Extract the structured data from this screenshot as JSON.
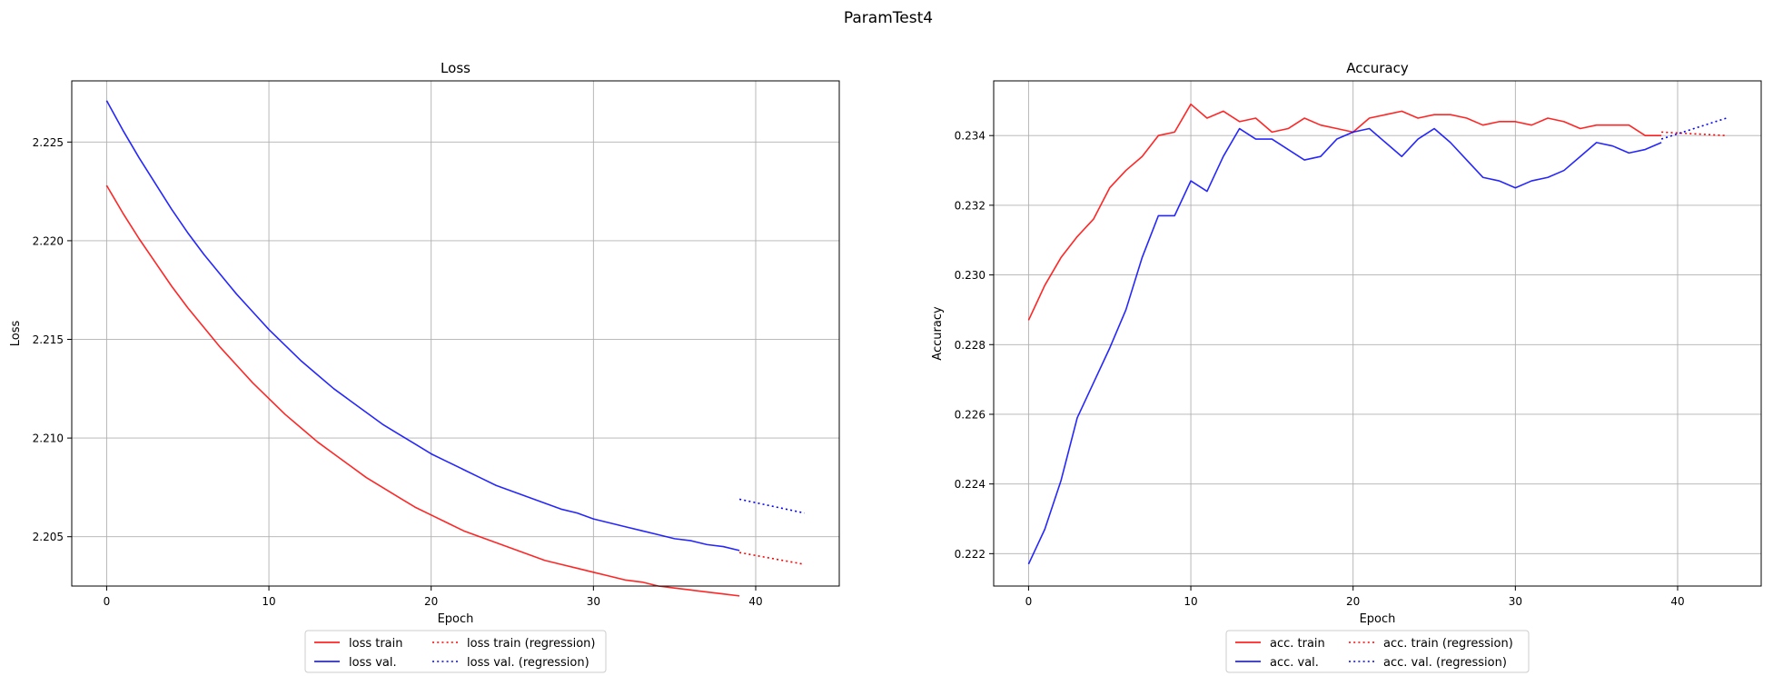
{
  "suptitle": "ParamTest4",
  "colors": {
    "train": "#ff0000",
    "val": "#0000ff",
    "grid": "#b0b0b0"
  },
  "chart_data": [
    {
      "type": "line",
      "title": "Loss",
      "xlabel": "Epoch",
      "ylabel": "Loss",
      "xlim": [
        -2.15,
        45.15
      ],
      "ylim": [
        2.2025,
        2.2281
      ],
      "xticks": [
        0,
        10,
        20,
        30,
        40
      ],
      "xtick_labels": [
        "0",
        "10",
        "20",
        "30",
        "40"
      ],
      "yticks": [
        2.205,
        2.21,
        2.215,
        2.22,
        2.225
      ],
      "ytick_labels": [
        "2.205",
        "2.210",
        "2.215",
        "2.220",
        "2.225"
      ],
      "grid": true,
      "legend_position": "below",
      "series": [
        {
          "name": "loss train",
          "color": "#ff0000",
          "style": "solid",
          "x": [
            0,
            1,
            2,
            3,
            4,
            5,
            6,
            7,
            8,
            9,
            10,
            11,
            12,
            13,
            14,
            15,
            16,
            17,
            18,
            19,
            20,
            21,
            22,
            23,
            24,
            25,
            26,
            27,
            28,
            29,
            30,
            31,
            32,
            33,
            34,
            35,
            36,
            37,
            38,
            39
          ],
          "y": [
            2.2228,
            2.2214,
            2.2201,
            2.2189,
            2.2177,
            2.2166,
            2.2156,
            2.2146,
            2.2137,
            2.2128,
            2.212,
            2.2112,
            2.2105,
            2.2098,
            2.2092,
            2.2086,
            2.208,
            2.2075,
            2.207,
            2.2065,
            2.2061,
            2.2057,
            2.2053,
            2.205,
            2.2047,
            2.2044,
            2.2041,
            2.2038,
            2.2036,
            2.2034,
            2.2032,
            2.203,
            2.2028,
            2.2027,
            2.2025,
            2.2024,
            2.2023,
            2.2022,
            2.2021,
            2.202
          ]
        },
        {
          "name": "loss val.",
          "color": "#0000ff",
          "style": "solid",
          "x": [
            0,
            1,
            2,
            3,
            4,
            5,
            6,
            7,
            8,
            9,
            10,
            11,
            12,
            13,
            14,
            15,
            16,
            17,
            18,
            19,
            20,
            21,
            22,
            23,
            24,
            25,
            26,
            27,
            28,
            29,
            30,
            31,
            32,
            33,
            34,
            35,
            36,
            37,
            38,
            39
          ],
          "y": [
            2.2271,
            2.2256,
            2.2242,
            2.2229,
            2.2216,
            2.2204,
            2.2193,
            2.2183,
            2.2173,
            2.2164,
            2.2155,
            2.2147,
            2.2139,
            2.2132,
            2.2125,
            2.2119,
            2.2113,
            2.2107,
            2.2102,
            2.2097,
            2.2092,
            2.2088,
            2.2084,
            2.208,
            2.2076,
            2.2073,
            2.207,
            2.2067,
            2.2064,
            2.2062,
            2.2059,
            2.2057,
            2.2055,
            2.2053,
            2.2051,
            2.2049,
            2.2048,
            2.2046,
            2.2045,
            2.2043
          ]
        },
        {
          "name": "loss train (regression)",
          "color": "#ff0000",
          "style": "dotted",
          "x": [
            39,
            43
          ],
          "y": [
            2.2042,
            2.2036
          ]
        },
        {
          "name": "loss val. (regression)",
          "color": "#0000ff",
          "style": "dotted",
          "x": [
            39,
            43
          ],
          "y": [
            2.2069,
            2.2062
          ]
        }
      ],
      "legend": [
        {
          "label": "loss train",
          "color": "#ff0000",
          "style": "solid"
        },
        {
          "label": "loss val.",
          "color": "#0000ff",
          "style": "solid"
        },
        {
          "label": "loss train (regression)",
          "color": "#ff0000",
          "style": "dotted"
        },
        {
          "label": "loss val. (regression)",
          "color": "#0000ff",
          "style": "dotted"
        }
      ]
    },
    {
      "type": "line",
      "title": "Accuracy",
      "xlabel": "Epoch",
      "ylabel": "Accuracy",
      "xlim": [
        -2.15,
        45.15
      ],
      "ylim": [
        0.22107,
        0.23557
      ],
      "xticks": [
        0,
        10,
        20,
        30,
        40
      ],
      "xtick_labels": [
        "0",
        "10",
        "20",
        "30",
        "40"
      ],
      "yticks": [
        0.222,
        0.224,
        0.226,
        0.228,
        0.23,
        0.232,
        0.234
      ],
      "ytick_labels": [
        "0.222",
        "0.224",
        "0.226",
        "0.228",
        "0.230",
        "0.232",
        "0.234"
      ],
      "grid": true,
      "legend_position": "below",
      "series": [
        {
          "name": "acc. train",
          "color": "#ff0000",
          "style": "solid",
          "x": [
            0,
            1,
            2,
            3,
            4,
            5,
            6,
            7,
            8,
            9,
            10,
            11,
            12,
            13,
            14,
            15,
            16,
            17,
            18,
            19,
            20,
            21,
            22,
            23,
            24,
            25,
            26,
            27,
            28,
            29,
            30,
            31,
            32,
            33,
            34,
            35,
            36,
            37,
            38,
            39
          ],
          "y": [
            0.2287,
            0.2297,
            0.2305,
            0.2311,
            0.2316,
            0.2325,
            0.233,
            0.2334,
            0.234,
            0.2341,
            0.2349,
            0.2345,
            0.2347,
            0.2344,
            0.2345,
            0.2341,
            0.2342,
            0.2345,
            0.2343,
            0.2342,
            0.2341,
            0.2345,
            0.2346,
            0.2347,
            0.2345,
            0.2346,
            0.2346,
            0.2345,
            0.2343,
            0.2344,
            0.2344,
            0.2343,
            0.2345,
            0.2344,
            0.2342,
            0.2343,
            0.2343,
            0.2343,
            0.234,
            0.234
          ]
        },
        {
          "name": "acc. val.",
          "color": "#0000ff",
          "style": "solid",
          "x": [
            0,
            1,
            2,
            3,
            4,
            5,
            6,
            7,
            8,
            9,
            10,
            11,
            12,
            13,
            14,
            15,
            16,
            17,
            18,
            19,
            20,
            21,
            22,
            23,
            24,
            25,
            26,
            27,
            28,
            29,
            30,
            31,
            32,
            33,
            34,
            35,
            36,
            37,
            38,
            39
          ],
          "y": [
            0.2217,
            0.2227,
            0.2241,
            0.2259,
            0.2269,
            0.2279,
            0.229,
            0.2305,
            0.2317,
            0.2317,
            0.2327,
            0.2324,
            0.2334,
            0.2342,
            0.2339,
            0.2339,
            0.2336,
            0.2333,
            0.2334,
            0.2339,
            0.2341,
            0.2342,
            0.2338,
            0.2334,
            0.2339,
            0.2342,
            0.2338,
            0.2333,
            0.2328,
            0.2327,
            0.2325,
            0.2327,
            0.2328,
            0.233,
            0.2334,
            0.2338,
            0.2337,
            0.2335,
            0.2336,
            0.2338
          ]
        },
        {
          "name": "acc. train (regression)",
          "color": "#ff0000",
          "style": "dotted",
          "x": [
            39,
            43
          ],
          "y": [
            0.2341,
            0.234
          ]
        },
        {
          "name": "acc. val. (regression)",
          "color": "#0000ff",
          "style": "dotted",
          "x": [
            39,
            43
          ],
          "y": [
            0.2339,
            0.2345
          ]
        }
      ],
      "legend": [
        {
          "label": "acc. train",
          "color": "#ff0000",
          "style": "solid"
        },
        {
          "label": "acc. val.",
          "color": "#0000ff",
          "style": "solid"
        },
        {
          "label": "acc. train (regression)",
          "color": "#ff0000",
          "style": "dotted"
        },
        {
          "label": "acc. val. (regression)",
          "color": "#0000ff",
          "style": "dotted"
        }
      ]
    }
  ]
}
